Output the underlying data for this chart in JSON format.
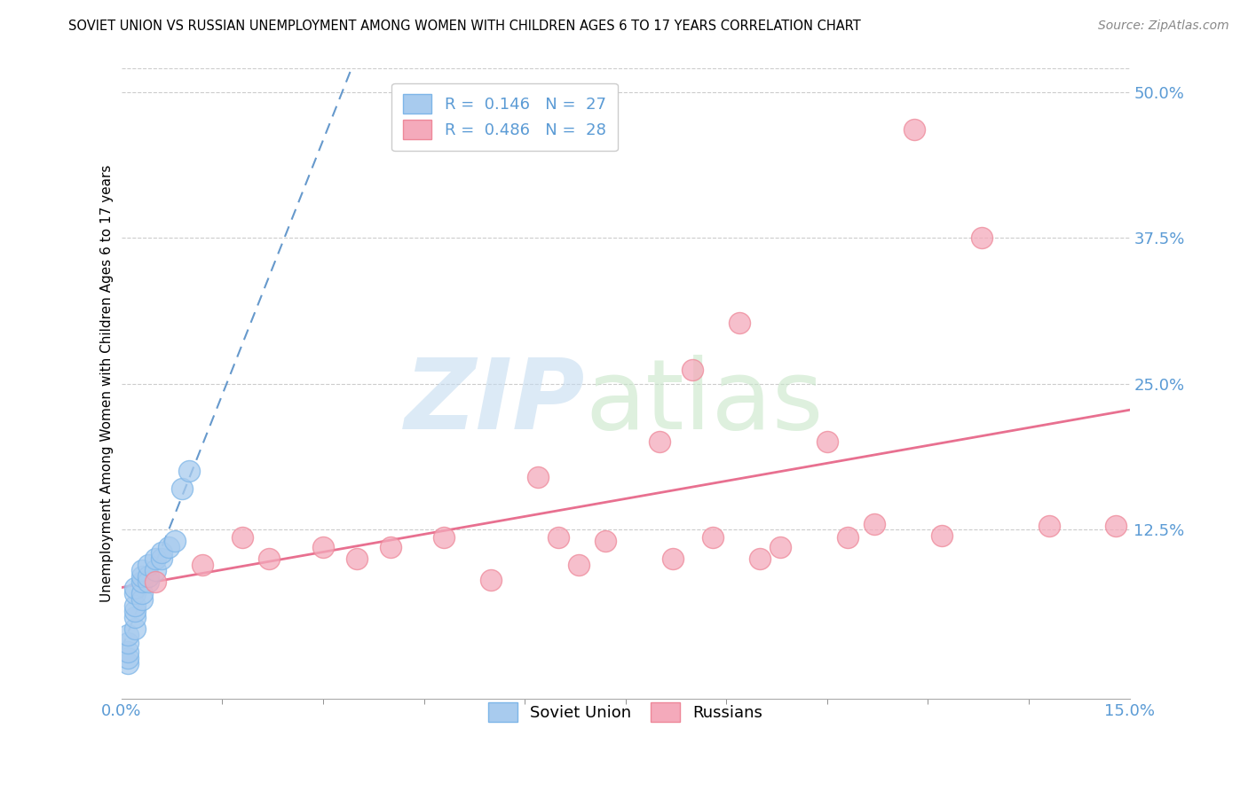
{
  "title": "SOVIET UNION VS RUSSIAN UNEMPLOYMENT AMONG WOMEN WITH CHILDREN AGES 6 TO 17 YEARS CORRELATION CHART",
  "source": "Source: ZipAtlas.com",
  "ylabel": "Unemployment Among Women with Children Ages 6 to 17 years",
  "xlim": [
    0.0,
    0.15
  ],
  "ylim": [
    -0.02,
    0.52
  ],
  "soviet_color": "#A8CBEE",
  "soviet_edge_color": "#7EB6E8",
  "russian_color": "#F4AABB",
  "russian_edge_color": "#EE8899",
  "soviet_line_color": "#6699CC",
  "russian_line_color": "#E87090",
  "soviet_R": 0.146,
  "soviet_N": 27,
  "russian_R": 0.486,
  "russian_N": 28,
  "ytick_vals": [
    0.125,
    0.25,
    0.375,
    0.5
  ],
  "ytick_labels": [
    "12.5%",
    "25.0%",
    "37.5%",
    "50.0%"
  ],
  "xtick_minor_vals": [
    0.015,
    0.03,
    0.045,
    0.06,
    0.075,
    0.09,
    0.105,
    0.12,
    0.135
  ],
  "soviet_points_x": [
    0.001,
    0.001,
    0.001,
    0.001,
    0.001,
    0.002,
    0.002,
    0.002,
    0.002,
    0.002,
    0.002,
    0.003,
    0.003,
    0.003,
    0.003,
    0.003,
    0.004,
    0.004,
    0.004,
    0.005,
    0.005,
    0.006,
    0.006,
    0.007,
    0.008,
    0.009,
    0.01
  ],
  "soviet_points_y": [
    0.01,
    0.015,
    0.02,
    0.028,
    0.035,
    0.04,
    0.05,
    0.055,
    0.06,
    0.07,
    0.075,
    0.065,
    0.07,
    0.08,
    0.085,
    0.09,
    0.08,
    0.085,
    0.095,
    0.09,
    0.1,
    0.1,
    0.105,
    0.11,
    0.115,
    0.16,
    0.175
  ],
  "russian_points_x": [
    0.005,
    0.012,
    0.018,
    0.022,
    0.03,
    0.035,
    0.04,
    0.048,
    0.055,
    0.062,
    0.065,
    0.068,
    0.072,
    0.08,
    0.082,
    0.085,
    0.088,
    0.092,
    0.095,
    0.098,
    0.105,
    0.108,
    0.112,
    0.118,
    0.122,
    0.128,
    0.138,
    0.148
  ],
  "russian_points_y": [
    0.08,
    0.095,
    0.118,
    0.1,
    0.11,
    0.1,
    0.11,
    0.118,
    0.082,
    0.17,
    0.118,
    0.095,
    0.115,
    0.2,
    0.1,
    0.262,
    0.118,
    0.302,
    0.1,
    0.11,
    0.2,
    0.118,
    0.13,
    0.468,
    0.12,
    0.375,
    0.128,
    0.128
  ]
}
